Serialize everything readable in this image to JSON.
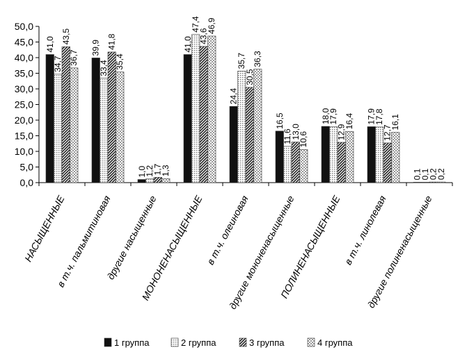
{
  "chart_data": {
    "type": "bar",
    "categories": [
      "НАСЫЩЕННЫЕ",
      "в т.ч. пальмитиновая",
      "другие насыщенные",
      "МОНОНЕНАСЫЩЕННЫЕ",
      "в т.ч. олеиновая",
      "другие мононенасыщенные",
      "ПОЛИНЕНАСЫЩЕННЫЕ",
      "в т.ч. линолевая",
      "другие полиненасыщенные"
    ],
    "series": [
      {
        "name": "1 группа",
        "values": [
          41.0,
          39.9,
          1.0,
          41.0,
          24.4,
          16.5,
          18.0,
          17.9,
          0.1
        ],
        "labels": [
          "41,0",
          "39,9",
          "1,0",
          "41,0",
          "24,4",
          "16,5",
          "18,0",
          "17,9",
          "0,1"
        ],
        "fill": "black"
      },
      {
        "name": "2 группа",
        "values": [
          34.7,
          33.4,
          1.2,
          47.4,
          35.7,
          11.6,
          17.9,
          17.8,
          0.1
        ],
        "labels": [
          "34,7",
          "33,4",
          "1,2",
          "47,4",
          "35,7",
          "11,6",
          "17,9",
          "17,8",
          "0,1"
        ],
        "fill": "dots"
      },
      {
        "name": "3 группа",
        "values": [
          43.5,
          41.8,
          1.7,
          43.6,
          30.5,
          13.0,
          12.9,
          12.7,
          0.2
        ],
        "labels": [
          "43,5",
          "41,8",
          "1,7",
          "43,6",
          "30,5",
          "13,0",
          "12,9",
          "12,7",
          "0,2"
        ],
        "fill": "diagonal"
      },
      {
        "name": "4 группа",
        "values": [
          36.7,
          35.4,
          1.3,
          46.9,
          36.3,
          10.6,
          16.4,
          16.1,
          0.2
        ],
        "labels": [
          "36,7",
          "35,4",
          "1,3",
          "46,9",
          "36,3",
          "10,6",
          "16,4",
          "16,1",
          "0,2"
        ],
        "fill": "checker"
      }
    ],
    "y_ticks": [
      "0,0",
      "5,0",
      "10,0",
      "15,0",
      "20,0",
      "25,0",
      "30,0",
      "35,0",
      "40,0",
      "45,0",
      "50,0"
    ],
    "ylim": [
      0,
      50
    ],
    "grid": false,
    "legend_position": "bottom",
    "title": "",
    "xlabel": "",
    "ylabel": ""
  }
}
